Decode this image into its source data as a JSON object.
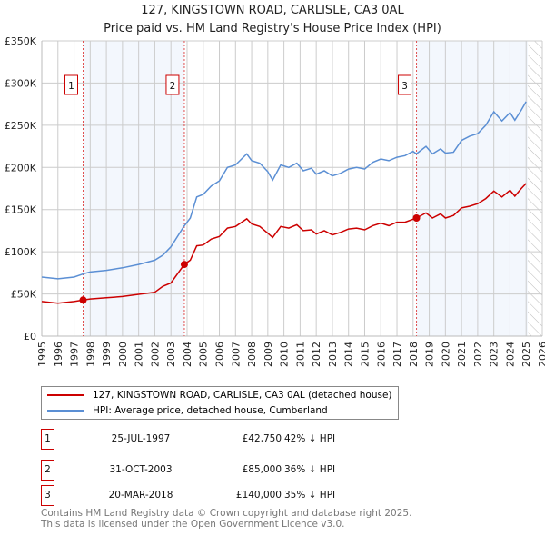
{
  "chart_data": {
    "type": "line",
    "title": "127, KINGSTOWN ROAD, CARLISLE, CA3 0AL",
    "subtitle": "Price paid vs. HM Land Registry's House Price Index (HPI)",
    "xlim": [
      1995,
      2026
    ],
    "ylim": [
      0,
      350000
    ],
    "x_ticks": [
      "1995",
      "1996",
      "1997",
      "1998",
      "1999",
      "2000",
      "2001",
      "2002",
      "2003",
      "2004",
      "2005",
      "2006",
      "2007",
      "2008",
      "2009",
      "2010",
      "2011",
      "2012",
      "2013",
      "2014",
      "2015",
      "2016",
      "2017",
      "2018",
      "2019",
      "2020",
      "2021",
      "2022",
      "2023",
      "2024",
      "2025",
      "2026"
    ],
    "y_ticks": [
      {
        "value": 0,
        "label": "£0"
      },
      {
        "value": 50000,
        "label": "£50K"
      },
      {
        "value": 100000,
        "label": "£100K"
      },
      {
        "value": 150000,
        "label": "£150K"
      },
      {
        "value": 200000,
        "label": "£200K"
      },
      {
        "value": 250000,
        "label": "£250K"
      },
      {
        "value": 300000,
        "label": "£300K"
      },
      {
        "value": 350000,
        "label": "£350K"
      }
    ],
    "grid": true,
    "forecast_hatch_from": 2025.1,
    "shaded_periods": [
      [
        1997.56,
        2003.83
      ],
      [
        2018.21,
        2025.1
      ]
    ],
    "series": [
      {
        "name": "127, KINGSTOWN ROAD, CARLISLE, CA3 0AL (detached house)",
        "color": "#cc0000",
        "x": [
          1995,
          1996,
          1997,
          1997.56,
          1998,
          1999,
          2000,
          2001,
          2002,
          2002.5,
          2003,
          2003.83,
          2004.2,
          2004.6,
          2005,
          2005.5,
          2006,
          2006.5,
          2007,
          2007.7,
          2008,
          2008.5,
          2009,
          2009.3,
          2009.8,
          2010.3,
          2010.8,
          2011.2,
          2011.7,
          2012,
          2012.5,
          2013,
          2013.5,
          2014,
          2014.5,
          2015,
          2015.5,
          2016,
          2016.5,
          2017,
          2017.5,
          2018.21,
          2018.8,
          2019.2,
          2019.7,
          2020,
          2020.5,
          2021,
          2021.5,
          2022,
          2022.5,
          2023,
          2023.5,
          2024,
          2024.3,
          2024.7,
          2025
        ],
        "values": [
          41000,
          39000,
          41000,
          42750,
          44000,
          45500,
          47000,
          49500,
          52000,
          59000,
          63000,
          85000,
          90000,
          107000,
          108000,
          115000,
          118000,
          128000,
          130000,
          139000,
          133000,
          130000,
          122000,
          117000,
          130000,
          128000,
          132000,
          125000,
          126000,
          121000,
          125000,
          120000,
          123000,
          127000,
          128000,
          126000,
          131000,
          134000,
          131000,
          135000,
          135000,
          140000,
          146000,
          140000,
          145000,
          140000,
          143000,
          152000,
          154000,
          157000,
          163000,
          172000,
          165000,
          173000,
          166000,
          175000,
          181000
        ]
      },
      {
        "name": "HPI: Average price, detached house, Cumberland",
        "color": "#5b8fd4",
        "x": [
          1995,
          1996,
          1997,
          1997.6,
          1998,
          1999,
          2000,
          2001,
          2002,
          2002.5,
          2003,
          2003.8,
          2004.2,
          2004.6,
          2005,
          2005.5,
          2006,
          2006.5,
          2007,
          2007.7,
          2008,
          2008.5,
          2009,
          2009.3,
          2009.8,
          2010.3,
          2010.8,
          2011.2,
          2011.7,
          2012,
          2012.5,
          2013,
          2013.5,
          2014,
          2014.5,
          2015,
          2015.5,
          2016,
          2016.5,
          2017,
          2017.5,
          2018,
          2018.2,
          2018.8,
          2019.2,
          2019.7,
          2020,
          2020.5,
          2021,
          2021.5,
          2022,
          2022.5,
          2023,
          2023.5,
          2024,
          2024.3,
          2024.7,
          2025
        ],
        "values": [
          70000,
          68000,
          70000,
          74000,
          76000,
          78000,
          81000,
          85000,
          90000,
          96000,
          106000,
          130000,
          140000,
          165000,
          168000,
          178000,
          184000,
          200000,
          203000,
          216000,
          208000,
          205000,
          195000,
          185000,
          203000,
          200000,
          205000,
          196000,
          199000,
          192000,
          196000,
          190000,
          193000,
          198000,
          200000,
          198000,
          206000,
          210000,
          208000,
          212000,
          214000,
          219000,
          216000,
          225000,
          216000,
          222000,
          217000,
          218000,
          232000,
          237000,
          240000,
          250000,
          266000,
          255000,
          265000,
          256000,
          268000,
          278000
        ]
      }
    ],
    "sales": [
      {
        "label": "1",
        "x": 1997.56,
        "value": 42750,
        "date": "25-JUL-1997",
        "price": "£42,750",
        "hpi": "42% ↓ HPI"
      },
      {
        "label": "2",
        "x": 2003.83,
        "value": 85000,
        "date": "31-OCT-2003",
        "price": "£85,000",
        "hpi": "36% ↓ HPI"
      },
      {
        "label": "3",
        "x": 2018.21,
        "value": 140000,
        "date": "20-MAR-2018",
        "price": "£140,000",
        "hpi": "35% ↓ HPI"
      }
    ]
  },
  "footer": {
    "line1": "Contains HM Land Registry data © Crown copyright and database right 2025.",
    "line2": "This data is licensed under the Open Government Licence v3.0."
  }
}
